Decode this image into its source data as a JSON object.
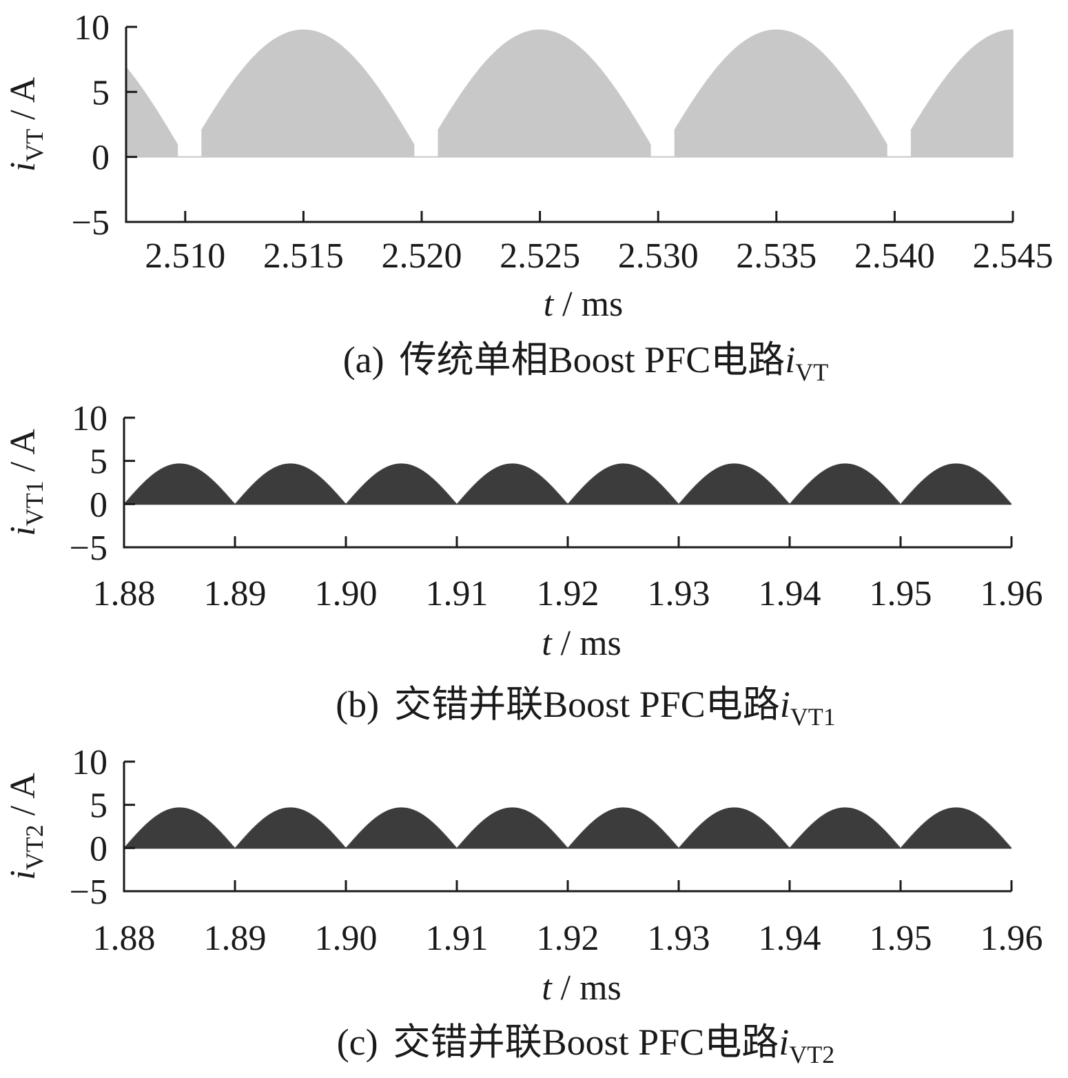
{
  "chart_data": [
    {
      "type": "area",
      "panel": "a",
      "caption": {
        "prefix": "(a)",
        "text": "传统单相Boost PFC电路",
        "var": "i",
        "sub": "VT"
      },
      "ylabel": {
        "var": "i",
        "sub": "VT",
        "unit": " / A"
      },
      "xlabel": {
        "var": "t",
        "unit": " / ms"
      },
      "xlim": [
        2.5075,
        2.545
      ],
      "ylim": [
        -5,
        10
      ],
      "yticks": [
        -5,
        0,
        5,
        10
      ],
      "ytick_labels": [
        "−5",
        "0",
        "5",
        "10"
      ],
      "xticks": [
        2.51,
        2.515,
        2.52,
        2.525,
        2.53,
        2.535,
        2.54,
        2.545
      ],
      "xtick_labels": [
        "2.510",
        "2.515",
        "2.520",
        "2.525",
        "2.530",
        "2.535",
        "2.540",
        "2.545"
      ],
      "series": [
        {
          "color": "#c8c8c8",
          "envelope": "rectified-sine",
          "peak": 9.8,
          "period": 0.01,
          "phase": 0.01,
          "conduction_start": 0.0007,
          "conduction_end": 0.0097
        }
      ]
    },
    {
      "type": "area",
      "panel": "b",
      "caption": {
        "prefix": "(b)",
        "text": "交错并联Boost PFC电路",
        "var": "i",
        "sub": "VT1"
      },
      "ylabel": {
        "var": "i",
        "sub": "VT1",
        "unit": " / A"
      },
      "xlabel": {
        "var": "t",
        "unit": " / ms"
      },
      "xlim": [
        1.88,
        1.96
      ],
      "ylim": [
        -5,
        10
      ],
      "yticks": [
        -5,
        0,
        5,
        10
      ],
      "ytick_labels": [
        "−5",
        "0",
        "5",
        "10"
      ],
      "xticks": [
        1.88,
        1.89,
        1.9,
        1.91,
        1.92,
        1.93,
        1.94,
        1.95,
        1.96
      ],
      "xtick_labels": [
        "1.88",
        "1.89",
        "1.90",
        "1.91",
        "1.92",
        "1.93",
        "1.94",
        "1.95",
        "1.96"
      ],
      "series": [
        {
          "color": "#3c3c3c",
          "envelope": "rectified-sine",
          "peak": 4.7,
          "period": 0.01,
          "phase": 0.0,
          "conduction_start": 0.0,
          "conduction_end": 0.01
        }
      ]
    },
    {
      "type": "area",
      "panel": "c",
      "caption": {
        "prefix": "(c)",
        "text": "交错并联Boost PFC电路",
        "var": "i",
        "sub": "VT2"
      },
      "ylabel": {
        "var": "i",
        "sub": "VT2",
        "unit": " / A"
      },
      "xlabel": {
        "var": "t",
        "unit": " / ms"
      },
      "xlim": [
        1.88,
        1.96
      ],
      "ylim": [
        -5,
        10
      ],
      "yticks": [
        -5,
        0,
        5,
        10
      ],
      "ytick_labels": [
        "−5",
        "0",
        "5",
        "10"
      ],
      "xticks": [
        1.88,
        1.89,
        1.9,
        1.91,
        1.92,
        1.93,
        1.94,
        1.95,
        1.96
      ],
      "xtick_labels": [
        "1.88",
        "1.89",
        "1.90",
        "1.91",
        "1.92",
        "1.93",
        "1.94",
        "1.95",
        "1.96"
      ],
      "series": [
        {
          "color": "#3c3c3c",
          "envelope": "rectified-sine",
          "peak": 4.7,
          "period": 0.01,
          "phase": 0.0,
          "conduction_start": 0.0,
          "conduction_end": 0.01
        }
      ]
    }
  ]
}
